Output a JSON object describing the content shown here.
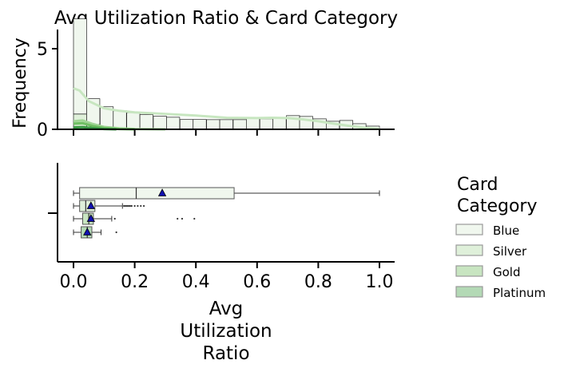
{
  "chart_data": [
    {
      "type": "histogram",
      "title": "Avg Utilization Ratio & Card Category",
      "ylabel": "Frequency",
      "ylim": [
        0,
        6
      ],
      "yticks": [
        0,
        5
      ],
      "y_tick_labels": [
        "0",
        "5"
      ],
      "xlim": [
        -0.05,
        1.05
      ],
      "bin_width": 0.043,
      "bin_starts": [
        0.0,
        0.043,
        0.087,
        0.13,
        0.174,
        0.217,
        0.261,
        0.304,
        0.348,
        0.391,
        0.435,
        0.478,
        0.522,
        0.565,
        0.609,
        0.652,
        0.696,
        0.739,
        0.783,
        0.826,
        0.87,
        0.913,
        0.957
      ],
      "series": [
        {
          "name": "Blue",
          "color": "#f0f7ee",
          "line_color": "#c7e6c0",
          "values": [
            5.9,
            1.6,
            1.3,
            1.1,
            1.0,
            0.9,
            0.8,
            0.75,
            0.6,
            0.6,
            0.6,
            0.6,
            0.6,
            0.7,
            0.65,
            0.7,
            0.85,
            0.8,
            0.65,
            0.5,
            0.55,
            0.35,
            0.2
          ],
          "kde_x": [
            0.0,
            0.02,
            0.05,
            0.1,
            0.15,
            0.2,
            0.3,
            0.4,
            0.5,
            0.6,
            0.65,
            0.7,
            0.75,
            0.8,
            0.85,
            0.9,
            0.95,
            1.0
          ],
          "kde_y": [
            2.55,
            2.4,
            1.75,
            1.3,
            1.15,
            1.05,
            0.95,
            0.85,
            0.72,
            0.7,
            0.72,
            0.7,
            0.62,
            0.5,
            0.35,
            0.22,
            0.1,
            0.03
          ]
        },
        {
          "name": "Silver",
          "color": "#dff0da",
          "line_color": "#9fd494",
          "values": [
            0.45,
            0.15,
            0.05,
            0.03,
            0.02,
            0.01,
            0.01,
            0,
            0.01,
            0.01,
            0,
            0,
            0,
            0,
            0,
            0,
            0,
            0,
            0,
            0,
            0,
            0,
            0
          ],
          "kde_x": [
            0.0,
            0.03,
            0.06,
            0.1,
            0.15,
            0.2,
            0.3
          ],
          "kde_y": [
            0.5,
            0.55,
            0.35,
            0.15,
            0.06,
            0.02,
            0.0
          ]
        },
        {
          "name": "Gold",
          "color": "#c8e5c1",
          "line_color": "#6fbf63",
          "values": [
            0.35,
            0.1,
            0.04,
            0.02,
            0.01,
            0,
            0,
            0,
            0,
            0,
            0,
            0,
            0,
            0,
            0,
            0,
            0,
            0,
            0,
            0,
            0,
            0,
            0
          ],
          "kde_x": [
            0.0,
            0.03,
            0.06,
            0.1,
            0.15,
            0.2
          ],
          "kde_y": [
            0.35,
            0.38,
            0.22,
            0.08,
            0.02,
            0.0
          ]
        },
        {
          "name": "Platinum",
          "color": "#b3d9b5",
          "line_color": "#3a9a45",
          "values": [
            0.15,
            0.05,
            0.01,
            0,
            0,
            0,
            0,
            0,
            0,
            0,
            0,
            0,
            0,
            0,
            0,
            0,
            0,
            0,
            0,
            0,
            0,
            0,
            0
          ],
          "kde_x": [
            0.0,
            0.03,
            0.06,
            0.1,
            0.14
          ],
          "kde_y": [
            0.12,
            0.14,
            0.08,
            0.02,
            0.0
          ]
        }
      ]
    },
    {
      "type": "boxplot",
      "xlabel": "Avg Utilization Ratio",
      "xlabel_lines": [
        "Avg",
        "Utilization",
        "Ratio"
      ],
      "xlim": [
        -0.05,
        1.05
      ],
      "xticks": [
        0.0,
        0.2,
        0.4,
        0.6,
        0.8,
        1.0
      ],
      "x_tick_labels": [
        "0.0",
        "0.2",
        "0.4",
        "0.6",
        "0.8",
        "1.0"
      ],
      "mean_marker_color": "#1010b0",
      "series": [
        {
          "name": "Blue",
          "color": "#f0f7ee",
          "whisker_low": 0.0,
          "q1": 0.02,
          "median": 0.205,
          "q3": 0.525,
          "whisker_high": 1.0,
          "mean": 0.29,
          "outliers": []
        },
        {
          "name": "Silver",
          "color": "#dff0da",
          "whisker_low": 0.0,
          "q1": 0.02,
          "median": 0.04,
          "q3": 0.07,
          "whisker_high": 0.16,
          "mean": 0.057,
          "outliers": [
            0.165,
            0.17,
            0.175,
            0.18,
            0.185,
            0.19,
            0.2,
            0.21,
            0.22,
            0.23
          ]
        },
        {
          "name": "Gold",
          "color": "#c8e5c1",
          "whisker_low": 0.0,
          "q1": 0.03,
          "median": 0.05,
          "q3": 0.065,
          "whisker_high": 0.125,
          "mean": 0.057,
          "outliers": [
            0.135,
            0.34,
            0.355,
            0.395
          ]
        },
        {
          "name": "Platinum",
          "color": "#b3d9b5",
          "whisker_low": 0.0,
          "q1": 0.025,
          "median": 0.045,
          "q3": 0.06,
          "whisker_high": 0.09,
          "mean": 0.045,
          "outliers": [
            0.14
          ]
        }
      ]
    }
  ],
  "legend": {
    "title_lines": [
      "Card",
      "Category"
    ],
    "entries": [
      "Blue",
      "Silver",
      "Gold",
      "Platinum"
    ],
    "placement": "right"
  }
}
